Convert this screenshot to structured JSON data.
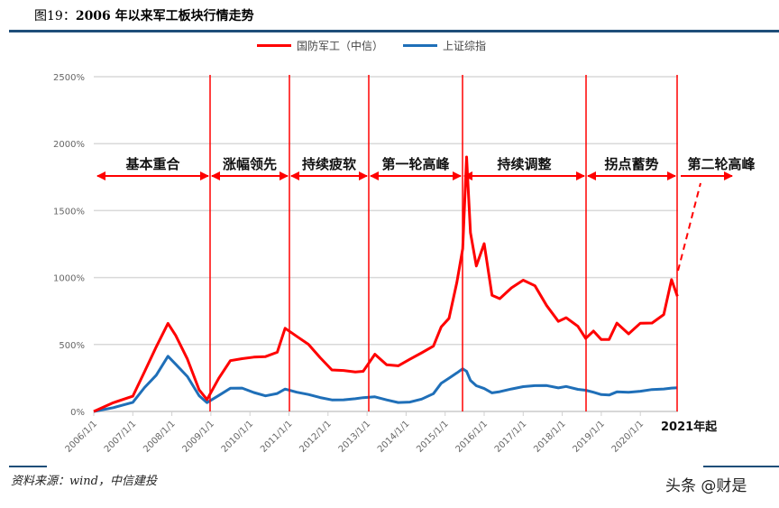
{
  "figure": {
    "label": "图19：",
    "title": "2006 年以来军工板块行情走势"
  },
  "legend": {
    "items": [
      {
        "name": "国防军工（中信）",
        "color": "#ff0000"
      },
      {
        "name": "上证综指",
        "color": "#1f6fb8"
      }
    ]
  },
  "phases": [
    {
      "label": "基本重合"
    },
    {
      "label": "涨幅领先"
    },
    {
      "label": "持续疲软"
    },
    {
      "label": "第一轮高峰"
    },
    {
      "label": "持续调整"
    },
    {
      "label": "拐点蓄势"
    },
    {
      "label": "第二轮高峰"
    }
  ],
  "tail_label": "2021年起",
  "source": "资料来源：wind，中信建投",
  "watermark": "头条 @财是",
  "chart_data": {
    "type": "line",
    "title": "2006 年以来军工板块行情走势",
    "xlabel": "",
    "ylabel": "",
    "ylim": [
      0,
      2500
    ],
    "yticks": [
      "0%",
      "500%",
      "1000%",
      "1500%",
      "2000%",
      "2500%"
    ],
    "xticks": [
      "2006/1/1",
      "2007/1/1",
      "2008/1/1",
      "2009/1/1",
      "2010/1/1",
      "2011/1/1",
      "2012/1/1",
      "2013/1/1",
      "2014/1/1",
      "2015/1/1",
      "2016/1/1",
      "2017/1/1",
      "2018/1/1",
      "2019/1/1",
      "2020/1/1"
    ],
    "grid": true,
    "legend_position": "top",
    "phase_dividers": [
      "2008/12",
      "2010/12",
      "2013/1",
      "2015/6",
      "2018/8",
      "2021/1"
    ],
    "phase_labels": [
      "基本重合",
      "涨幅领先",
      "持续疲软",
      "第一轮高峰",
      "持续调整",
      "拐点蓄势",
      "第二轮高峰"
    ],
    "x": [
      2006.0,
      2006.5,
      2007.0,
      2007.3,
      2007.6,
      2007.9,
      2008.1,
      2008.4,
      2008.7,
      2008.9,
      2009.2,
      2009.5,
      2009.8,
      2010.1,
      2010.4,
      2010.7,
      2010.9,
      2011.2,
      2011.5,
      2011.8,
      2012.1,
      2012.4,
      2012.7,
      2012.9,
      2013.2,
      2013.5,
      2013.8,
      2014.1,
      2014.4,
      2014.7,
      2014.9,
      2015.1,
      2015.3,
      2015.45,
      2015.55,
      2015.65,
      2015.8,
      2016.0,
      2016.2,
      2016.4,
      2016.7,
      2017.0,
      2017.3,
      2017.6,
      2017.9,
      2018.1,
      2018.4,
      2018.6,
      2018.8,
      2019.0,
      2019.2,
      2019.4,
      2019.7,
      2020.0,
      2020.3,
      2020.6,
      2020.8,
      2020.95
    ],
    "series": [
      {
        "name": "国防军工（中信）",
        "color": "#ff0000",
        "values": [
          0,
          100,
          150,
          300,
          450,
          620,
          560,
          420,
          200,
          100,
          220,
          340,
          380,
          430,
          450,
          460,
          600,
          520,
          480,
          420,
          350,
          330,
          280,
          260,
          400,
          360,
          380,
          420,
          430,
          450,
          600,
          700,
          1000,
          1250,
          1900,
          1300,
          1050,
          1250,
          900,
          880,
          930,
          950,
          900,
          780,
          700,
          740,
          650,
          520,
          560,
          520,
          560,
          700,
          600,
          640,
          620,
          700,
          1000,
          900
        ]
      },
      {
        "name": "上证综指",
        "color": "#1f6fb8",
        "values": [
          0,
          40,
          80,
          180,
          260,
          400,
          350,
          270,
          130,
          70,
          110,
          160,
          170,
          150,
          130,
          140,
          160,
          130,
          120,
          110,
          100,
          95,
          90,
          90,
          100,
          90,
          80,
          80,
          90,
          120,
          200,
          250,
          300,
          330,
          300,
          220,
          180,
          170,
          150,
          160,
          170,
          175,
          180,
          190,
          185,
          200,
          170,
          150,
          130,
          120,
          130,
          160,
          150,
          145,
          150,
          160,
          180,
          190
        ]
      }
    ]
  }
}
